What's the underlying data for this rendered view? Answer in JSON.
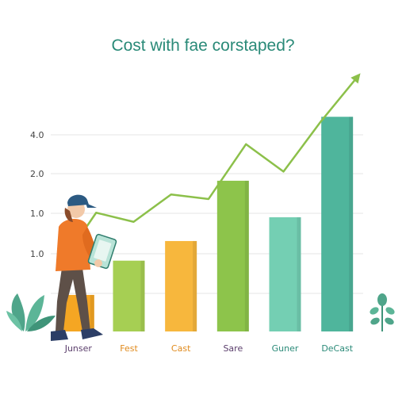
{
  "chart_data": {
    "type": "bar",
    "title": "Cost with fae corstaped?",
    "xlabel": "",
    "ylabel": "",
    "y_tick_labels": [
      "4.0",
      "2.0",
      "1.0",
      "1.0"
    ],
    "categories": [
      "Junser",
      "Fest",
      "Cast",
      "Sare",
      "Guner",
      "DeCast"
    ],
    "values": [
      0.8,
      1.55,
      1.98,
      3.3,
      2.5,
      4.7
    ],
    "ylim": [
      0,
      5.0
    ],
    "bar_colors": [
      "#f5a623",
      "#a6cf53",
      "#f7b73d",
      "#8dc44b",
      "#74cfb3",
      "#4fb59c"
    ],
    "label_colors": [
      "#5a3d6b",
      "#e08a1c",
      "#e08a1c",
      "#5a3d6b",
      "#2a8a78",
      "#2a8a78"
    ],
    "trend_line": {
      "values": [
        1.4,
        2.6,
        2.4,
        3.0,
        2.9,
        4.1,
        3.5,
        4.6,
        5.6
      ],
      "color": "#8cc04a"
    },
    "grid": true,
    "legend": "none"
  },
  "illustration": {
    "figure": "person-holding-tablet",
    "plants": [
      "leafy-plant-left",
      "sprout-plant-right"
    ]
  }
}
